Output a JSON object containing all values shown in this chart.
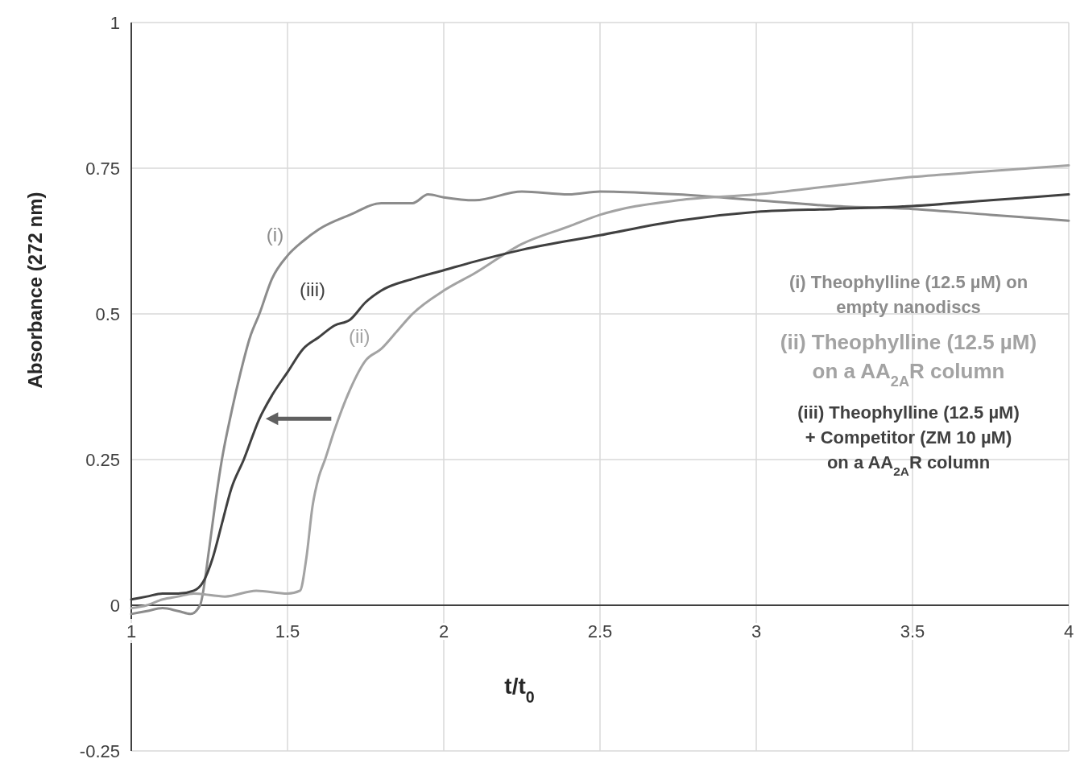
{
  "chart_data": {
    "type": "line",
    "xlabel": "t/t$_{0}$",
    "ylabel": "Absorbance (272 nm)",
    "xlim": [
      1,
      4
    ],
    "ylim": [
      -0.25,
      1
    ],
    "xticks": [
      1,
      1.5,
      2,
      2.5,
      3,
      3.5,
      4
    ],
    "yticks": [
      -0.25,
      0,
      0.25,
      0.5,
      0.75,
      1
    ],
    "grid": true,
    "legend": "right",
    "marker": "none",
    "line_style": "solid",
    "series": [
      {
        "name": "(i) Theophylline (12.5 µM) on\nempty nanodiscs",
        "color": "#8c8c8c",
        "x": [
          1,
          1.05,
          1.1,
          1.15,
          1.19,
          1.22,
          1.25,
          1.27,
          1.29,
          1.32,
          1.35,
          1.38,
          1.41,
          1.45,
          1.5,
          1.55,
          1.6,
          1.7,
          1.8,
          1.9,
          1.95,
          2.0,
          2.1,
          2.25,
          2.4,
          2.5,
          2.75,
          3.0,
          3.25,
          3.5,
          3.75,
          4.0
        ],
        "values": [
          -0.015,
          -0.01,
          -0.005,
          -0.01,
          -0.015,
          0.0,
          0.1,
          0.18,
          0.25,
          0.33,
          0.4,
          0.46,
          0.5,
          0.56,
          0.6,
          0.625,
          0.645,
          0.67,
          0.69,
          0.69,
          0.705,
          0.7,
          0.695,
          0.71,
          0.705,
          0.71,
          0.705,
          0.695,
          0.685,
          0.68,
          0.67,
          0.66
        ]
      },
      {
        "name": "(ii) Theophylline (12.5 µM)\non a AA$_{2A}$R column",
        "color": "#a3a3a3",
        "x": [
          1,
          1.05,
          1.1,
          1.15,
          1.2,
          1.3,
          1.4,
          1.5,
          1.54,
          1.56,
          1.58,
          1.6,
          1.62,
          1.65,
          1.7,
          1.75,
          1.8,
          1.85,
          1.9,
          2.0,
          2.1,
          2.25,
          2.4,
          2.5,
          2.75,
          3.0,
          3.25,
          3.5,
          3.75,
          4.0
        ],
        "values": [
          -0.005,
          0.0,
          0.01,
          0.015,
          0.02,
          0.015,
          0.025,
          0.02,
          0.025,
          0.08,
          0.17,
          0.22,
          0.25,
          0.3,
          0.37,
          0.42,
          0.44,
          0.47,
          0.5,
          0.54,
          0.57,
          0.62,
          0.65,
          0.67,
          0.695,
          0.705,
          0.72,
          0.735,
          0.745,
          0.755
        ]
      },
      {
        "name": "(iii) Theophylline (12.5 µM)\n+ Competitor (ZM 10 µM)\non a AA$_{2A}$R column",
        "color": "#404040",
        "x": [
          1,
          1.05,
          1.1,
          1.15,
          1.2,
          1.23,
          1.26,
          1.29,
          1.32,
          1.36,
          1.41,
          1.45,
          1.5,
          1.55,
          1.6,
          1.65,
          1.7,
          1.75,
          1.8,
          1.9,
          2.0,
          2.1,
          2.25,
          2.5,
          2.75,
          3.0,
          3.25,
          3.5,
          3.75,
          4.0
        ],
        "values": [
          0.01,
          0.015,
          0.02,
          0.02,
          0.025,
          0.04,
          0.08,
          0.14,
          0.2,
          0.25,
          0.32,
          0.36,
          0.4,
          0.44,
          0.46,
          0.48,
          0.49,
          0.52,
          0.54,
          0.56,
          0.575,
          0.59,
          0.61,
          0.635,
          0.66,
          0.675,
          0.68,
          0.685,
          0.695,
          0.705
        ]
      }
    ],
    "annotations": [
      "(i)",
      "(ii)",
      "(iii)"
    ]
  }
}
